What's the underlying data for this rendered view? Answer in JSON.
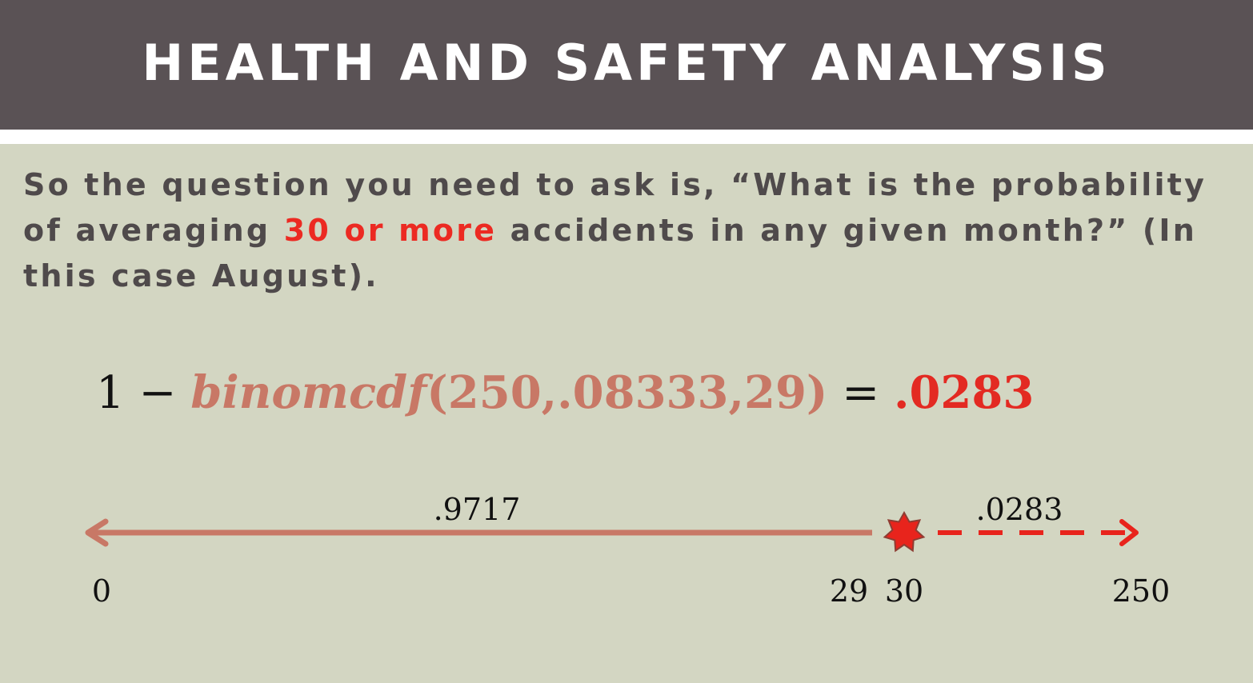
{
  "header": {
    "title": "HEALTH AND SAFETY ANALYSIS"
  },
  "question": {
    "before": "So the question you need to ask is, “What is the probability of averaging ",
    "highlight": "30 or more",
    "after": " accidents in any given month?” (In this case August)."
  },
  "formula": {
    "lhs_one": "1",
    "minus": "−",
    "function": "binomcdf",
    "args": "(250,.08333,29)",
    "equals": "=",
    "result": ".0283"
  },
  "number_line": {
    "left_probability": ".9717",
    "right_probability": ".0283",
    "labels": {
      "min": "0",
      "left_end": "29",
      "right_start": "30",
      "max": "250"
    },
    "colors": {
      "left_segment": "#c87866",
      "right_segment": "#e8241c",
      "marker": "#e8241c"
    },
    "marker_icon": "star-burst-icon"
  },
  "colors": {
    "header_bg": "#5a5255",
    "slide_bg": "#d3d6c2",
    "highlight": "#ec2a22"
  }
}
